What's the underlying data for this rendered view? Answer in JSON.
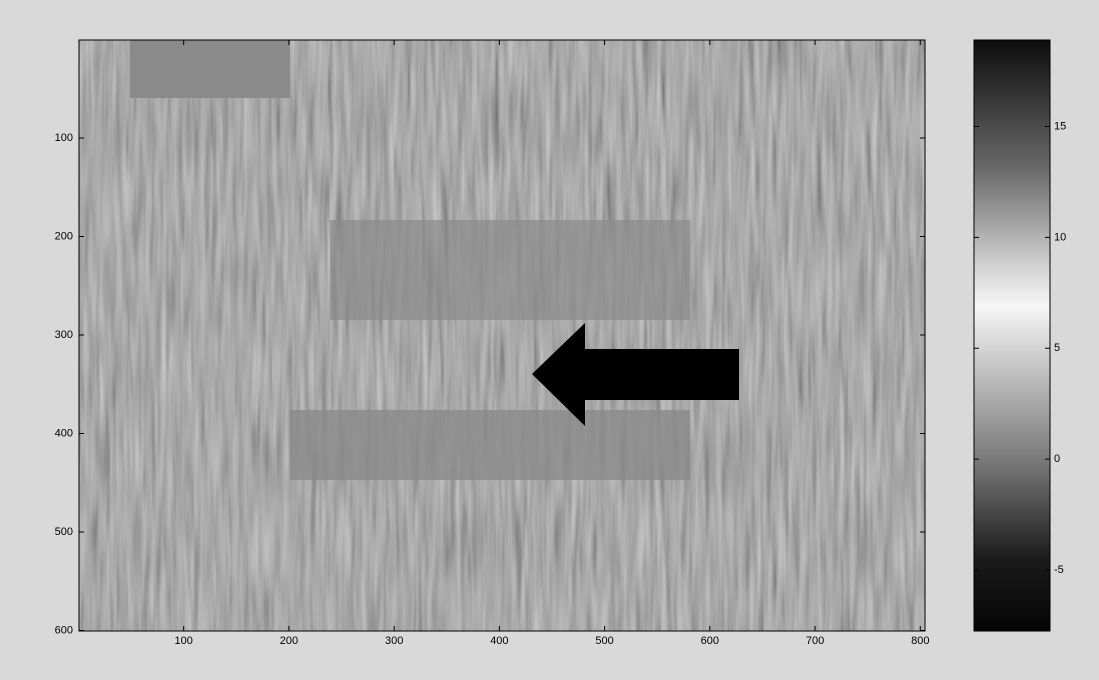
{
  "chart_data": {
    "type": "image",
    "xlim": [
      0.5,
      804.5
    ],
    "xticks": [
      100,
      200,
      300,
      400,
      500,
      600,
      700,
      800
    ],
    "ylim": [
      0.5,
      600.5
    ],
    "yticks": [
      100,
      200,
      300,
      400,
      500,
      600
    ],
    "y_reversed": true,
    "colorbar": {
      "clim": [
        -7.75,
        18.9
      ],
      "ticks": [
        -5,
        0,
        5,
        10,
        15
      ]
    }
  }
}
